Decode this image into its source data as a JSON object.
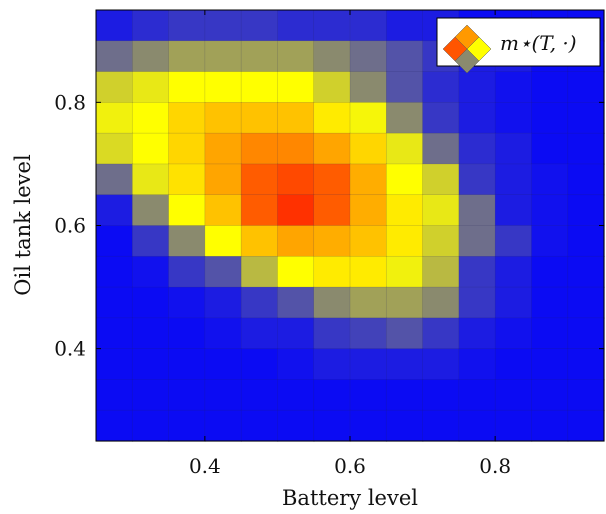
{
  "chart_data": {
    "type": "heatmap",
    "xlabel": "Battery level",
    "ylabel": "Oil tank level",
    "xlim": [
      0.25,
      0.95
    ],
    "ylim": [
      0.25,
      0.95
    ],
    "xticks": [
      0.4,
      0.6,
      0.8
    ],
    "yticks": [
      0.4,
      0.6,
      0.8
    ],
    "xtick_labels": [
      "0.4",
      "0.6",
      "0.8"
    ],
    "ytick_labels": [
      "0.4",
      "0.6",
      "0.8"
    ],
    "legend": {
      "label": "m⋆(T, ·)",
      "placement": "top-right"
    },
    "colormap": [
      "#0000ff",
      "#8a8a6e",
      "#ffff00",
      "#ff9900",
      "#ff0000"
    ],
    "value_range": [
      0,
      1
    ],
    "grid": false,
    "x_cells": [
      0.275,
      0.325,
      0.375,
      0.425,
      0.475,
      0.525,
      0.575,
      0.625,
      0.675,
      0.725,
      0.775,
      0.825,
      0.875,
      0.925
    ],
    "y_cells": [
      0.925,
      0.875,
      0.825,
      0.775,
      0.725,
      0.675,
      0.625,
      0.575,
      0.525,
      0.475,
      0.425,
      0.375,
      0.325,
      0.275
    ],
    "values": [
      [
        0.05,
        0.08,
        0.1,
        0.1,
        0.1,
        0.08,
        0.08,
        0.08,
        0.05,
        0.05,
        0.02,
        0.02,
        0.02,
        0.02
      ],
      [
        0.2,
        0.25,
        0.3,
        0.3,
        0.3,
        0.3,
        0.25,
        0.2,
        0.15,
        0.1,
        0.05,
        0.05,
        0.02,
        0.02
      ],
      [
        0.4,
        0.45,
        0.5,
        0.5,
        0.5,
        0.5,
        0.4,
        0.25,
        0.15,
        0.08,
        0.05,
        0.03,
        0.02,
        0.02
      ],
      [
        0.47,
        0.5,
        0.6,
        0.65,
        0.65,
        0.65,
        0.55,
        0.48,
        0.25,
        0.1,
        0.05,
        0.03,
        0.02,
        0.02
      ],
      [
        0.42,
        0.5,
        0.6,
        0.72,
        0.78,
        0.78,
        0.72,
        0.6,
        0.45,
        0.2,
        0.08,
        0.05,
        0.02,
        0.02
      ],
      [
        0.2,
        0.45,
        0.57,
        0.72,
        0.85,
        0.88,
        0.85,
        0.7,
        0.5,
        0.4,
        0.1,
        0.05,
        0.03,
        0.02
      ],
      [
        0.05,
        0.25,
        0.5,
        0.65,
        0.85,
        0.92,
        0.85,
        0.7,
        0.55,
        0.45,
        0.2,
        0.05,
        0.03,
        0.02
      ],
      [
        0.02,
        0.1,
        0.25,
        0.5,
        0.65,
        0.72,
        0.7,
        0.65,
        0.55,
        0.4,
        0.2,
        0.1,
        0.03,
        0.02
      ],
      [
        0.02,
        0.03,
        0.1,
        0.15,
        0.35,
        0.5,
        0.55,
        0.55,
        0.47,
        0.35,
        0.1,
        0.05,
        0.02,
        0.02
      ],
      [
        0.02,
        0.02,
        0.03,
        0.05,
        0.1,
        0.15,
        0.25,
        0.3,
        0.3,
        0.25,
        0.1,
        0.05,
        0.02,
        0.02
      ],
      [
        0.02,
        0.02,
        0.02,
        0.03,
        0.05,
        0.05,
        0.1,
        0.12,
        0.15,
        0.1,
        0.05,
        0.03,
        0.02,
        0.02
      ],
      [
        0.02,
        0.02,
        0.02,
        0.02,
        0.02,
        0.03,
        0.05,
        0.05,
        0.05,
        0.05,
        0.03,
        0.02,
        0.02,
        0.02
      ],
      [
        0.02,
        0.02,
        0.02,
        0.02,
        0.02,
        0.02,
        0.02,
        0.02,
        0.02,
        0.02,
        0.02,
        0.02,
        0.02,
        0.02
      ],
      [
        0.02,
        0.02,
        0.02,
        0.02,
        0.02,
        0.02,
        0.02,
        0.02,
        0.02,
        0.02,
        0.02,
        0.02,
        0.02,
        0.02
      ]
    ]
  }
}
